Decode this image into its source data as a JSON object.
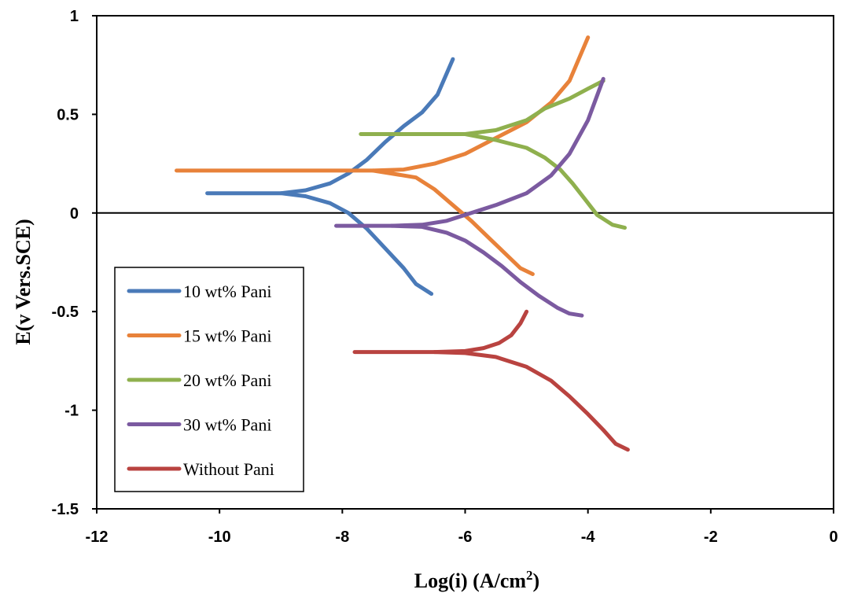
{
  "chart_data": {
    "type": "line",
    "title": "",
    "xlabel": "Log(i) (A/cm",
    "xlabel_sup": "2",
    "xlabel_end": ")",
    "ylabel": "E(v Vers.SCE)",
    "xlim": [
      -12,
      0
    ],
    "ylim": [
      -1.5,
      1
    ],
    "xticks": [
      -12,
      -10,
      -8,
      -6,
      -4,
      -2,
      0
    ],
    "yticks": [
      1,
      0.5,
      0,
      -0.5,
      -1,
      -1.5
    ],
    "xtick_labels": [
      "-12",
      "-10",
      "-8",
      "-6",
      "-4",
      "-2",
      "0"
    ],
    "ytick_labels": [
      "1",
      "0.5",
      "0",
      "-0.5",
      "-1",
      "-1.5"
    ],
    "zero_line": true,
    "legend_position": "lower-left",
    "series": [
      {
        "name": "10 wt% Pani",
        "color": "#4a7ab8",
        "branches": [
          [
            [
              -10.2,
              0.1
            ],
            [
              -9.5,
              0.1
            ],
            [
              -9.0,
              0.1
            ],
            [
              -8.6,
              0.115
            ],
            [
              -8.2,
              0.15
            ],
            [
              -7.9,
              0.2
            ],
            [
              -7.6,
              0.27
            ],
            [
              -7.3,
              0.36
            ],
            [
              -7.0,
              0.44
            ],
            [
              -6.7,
              0.51
            ],
            [
              -6.45,
              0.6
            ],
            [
              -6.2,
              0.78
            ]
          ],
          [
            [
              -9.0,
              0.1
            ],
            [
              -8.6,
              0.085
            ],
            [
              -8.2,
              0.05
            ],
            [
              -7.9,
              0.0
            ],
            [
              -7.6,
              -0.08
            ],
            [
              -7.3,
              -0.18
            ],
            [
              -7.0,
              -0.28
            ],
            [
              -6.8,
              -0.36
            ],
            [
              -6.55,
              -0.41
            ]
          ]
        ]
      },
      {
        "name": "15 wt% Pani",
        "color": "#e8823a",
        "branches": [
          [
            [
              -10.7,
              0.215
            ],
            [
              -9.0,
              0.215
            ],
            [
              -7.5,
              0.215
            ],
            [
              -7.0,
              0.22
            ],
            [
              -6.5,
              0.25
            ],
            [
              -6.0,
              0.3
            ],
            [
              -5.5,
              0.38
            ],
            [
              -5.0,
              0.46
            ],
            [
              -4.6,
              0.56
            ],
            [
              -4.3,
              0.67
            ],
            [
              -4.0,
              0.89
            ]
          ],
          [
            [
              -7.5,
              0.215
            ],
            [
              -7.2,
              0.2
            ],
            [
              -6.8,
              0.18
            ],
            [
              -6.5,
              0.12
            ],
            [
              -6.2,
              0.04
            ],
            [
              -5.9,
              -0.04
            ],
            [
              -5.6,
              -0.13
            ],
            [
              -5.3,
              -0.22
            ],
            [
              -5.1,
              -0.28
            ],
            [
              -4.9,
              -0.31
            ]
          ]
        ]
      },
      {
        "name": "20 wt% Pani",
        "color": "#8fb04e",
        "branches": [
          [
            [
              -7.7,
              0.4
            ],
            [
              -6.5,
              0.4
            ],
            [
              -6.0,
              0.4
            ],
            [
              -5.5,
              0.42
            ],
            [
              -5.0,
              0.47
            ],
            [
              -4.7,
              0.53
            ],
            [
              -4.3,
              0.58
            ],
            [
              -4.0,
              0.63
            ],
            [
              -3.75,
              0.67
            ]
          ],
          [
            [
              -6.0,
              0.4
            ],
            [
              -5.5,
              0.37
            ],
            [
              -5.0,
              0.33
            ],
            [
              -4.7,
              0.28
            ],
            [
              -4.45,
              0.22
            ],
            [
              -4.25,
              0.15
            ],
            [
              -4.05,
              0.07
            ],
            [
              -3.85,
              -0.01
            ],
            [
              -3.6,
              -0.06
            ],
            [
              -3.4,
              -0.075
            ]
          ]
        ]
      },
      {
        "name": "30 wt% Pani",
        "color": "#7b5aa0",
        "branches": [
          [
            [
              -8.1,
              -0.065
            ],
            [
              -7.2,
              -0.065
            ],
            [
              -6.7,
              -0.06
            ],
            [
              -6.3,
              -0.04
            ],
            [
              -6.0,
              -0.01
            ],
            [
              -5.5,
              0.04
            ],
            [
              -5.0,
              0.1
            ],
            [
              -4.6,
              0.19
            ],
            [
              -4.3,
              0.3
            ],
            [
              -4.0,
              0.47
            ],
            [
              -3.75,
              0.68
            ]
          ],
          [
            [
              -7.2,
              -0.065
            ],
            [
              -6.7,
              -0.07
            ],
            [
              -6.3,
              -0.1
            ],
            [
              -6.0,
              -0.14
            ],
            [
              -5.7,
              -0.2
            ],
            [
              -5.4,
              -0.27
            ],
            [
              -5.1,
              -0.35
            ],
            [
              -4.8,
              -0.42
            ],
            [
              -4.5,
              -0.48
            ],
            [
              -4.3,
              -0.51
            ],
            [
              -4.1,
              -0.52
            ]
          ]
        ]
      },
      {
        "name": "Without Pani",
        "color": "#b94340",
        "branches": [
          [
            [
              -7.8,
              -0.705
            ],
            [
              -6.5,
              -0.705
            ],
            [
              -6.0,
              -0.7
            ],
            [
              -5.7,
              -0.685
            ],
            [
              -5.45,
              -0.66
            ],
            [
              -5.25,
              -0.62
            ],
            [
              -5.1,
              -0.56
            ],
            [
              -5.0,
              -0.5
            ]
          ],
          [
            [
              -6.5,
              -0.705
            ],
            [
              -6.0,
              -0.71
            ],
            [
              -5.5,
              -0.73
            ],
            [
              -5.0,
              -0.78
            ],
            [
              -4.6,
              -0.85
            ],
            [
              -4.3,
              -0.93
            ],
            [
              -4.0,
              -1.02
            ],
            [
              -3.75,
              -1.1
            ],
            [
              -3.55,
              -1.17
            ],
            [
              -3.35,
              -1.2
            ]
          ]
        ]
      }
    ]
  }
}
